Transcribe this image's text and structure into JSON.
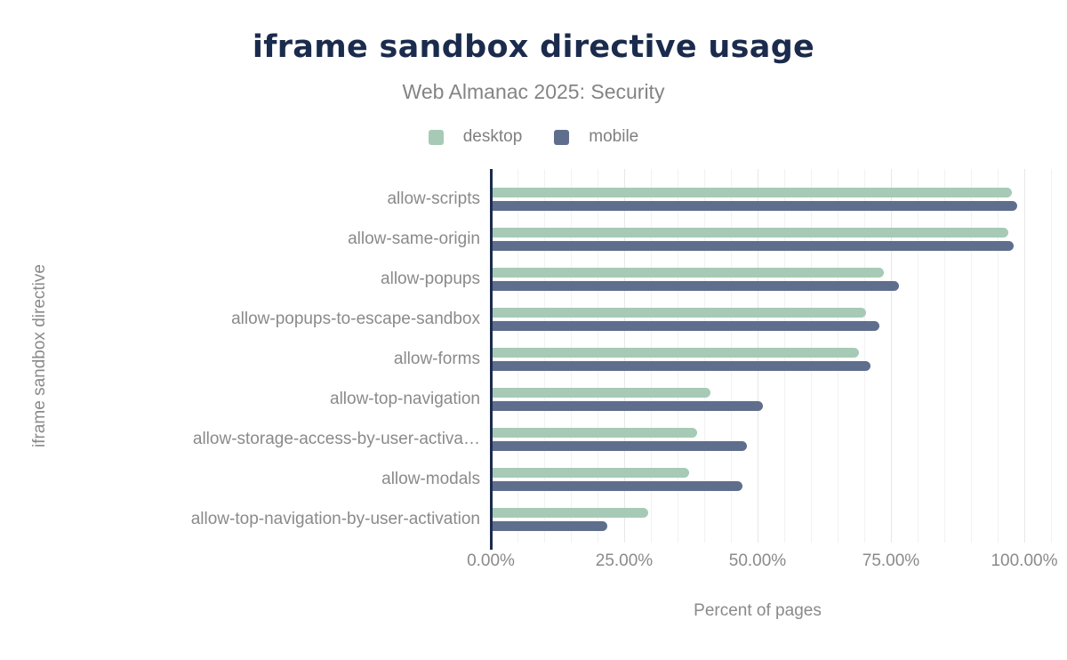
{
  "chart_data": {
    "type": "bar",
    "orientation": "horizontal",
    "title": "iframe sandbox directive usage",
    "subtitle": "Web Almanac 2025: Security",
    "xlabel": "Percent of pages",
    "ylabel": "iframe sandbox directive",
    "categories": [
      "allow-scripts",
      "allow-same-origin",
      "allow-popups",
      "allow-popups-to-escape-sandbox",
      "allow-forms",
      "allow-top-navigation",
      "allow-storage-access-by-user-activa…",
      "allow-modals",
      "allow-top-navigation-by-user-activation"
    ],
    "series": [
      {
        "name": "desktop",
        "color": "#a6cab6",
        "values": [
          97.3,
          96.6,
          73.3,
          70.0,
          68.6,
          40.9,
          38.3,
          36.8,
          29.2
        ]
      },
      {
        "name": "mobile",
        "color": "#5f6e8c",
        "values": [
          98.4,
          97.7,
          76.2,
          72.5,
          70.9,
          50.6,
          47.6,
          46.9,
          21.5
        ]
      }
    ],
    "x_ticks": [
      {
        "value": 0,
        "label": "0.00%"
      },
      {
        "value": 25,
        "label": "25.00%"
      },
      {
        "value": 50,
        "label": "50.00%"
      },
      {
        "value": 75,
        "label": "75.00%"
      },
      {
        "value": 100,
        "label": "100.00%"
      }
    ],
    "xlim": [
      0,
      105
    ],
    "grid": {
      "minor_step": 5,
      "major_step": 25,
      "shown": true
    },
    "legend_position": "top",
    "colors": {
      "title": "#1b2b4d",
      "axis_line": "#1b2b4d",
      "label_gray": "#8a8a8a",
      "grid_minor": "#f2f2f2",
      "grid_major": "#e7e7e7"
    }
  }
}
